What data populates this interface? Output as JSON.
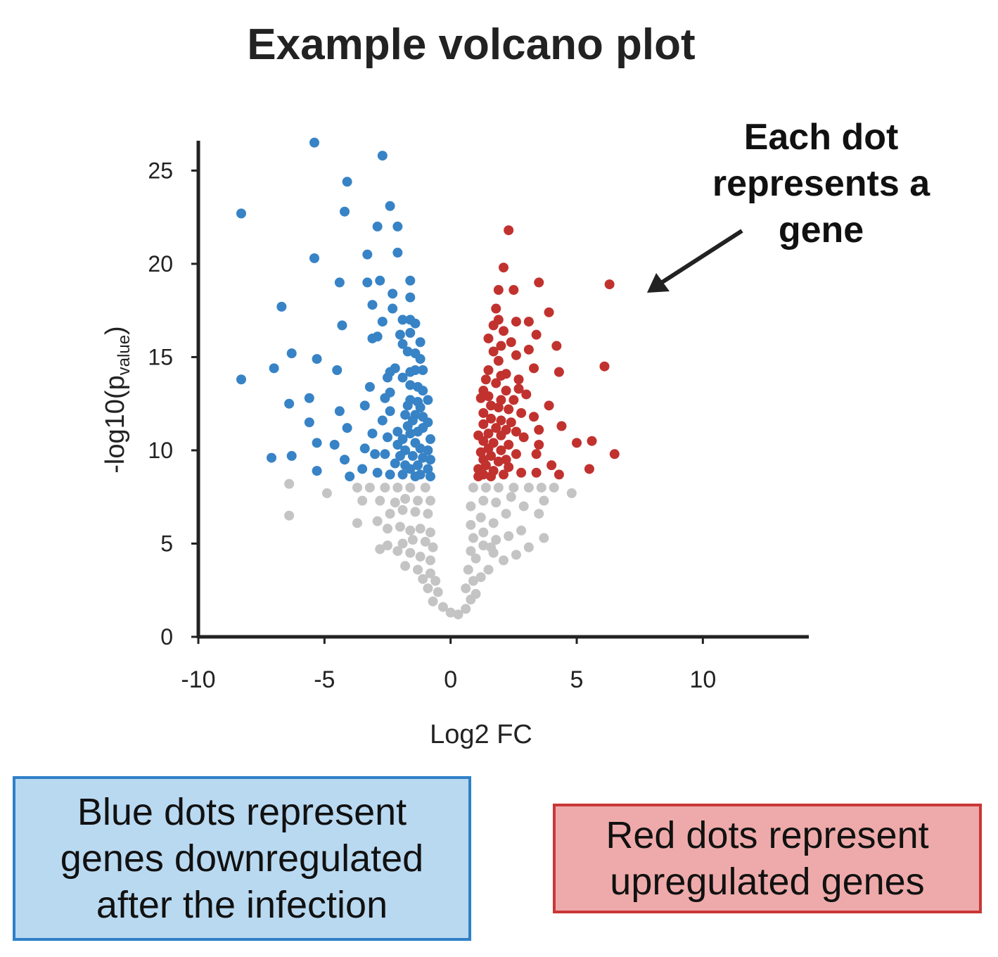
{
  "title": "Example volcano plot",
  "annotation": {
    "lines": [
      "Each dot",
      "represents a",
      "gene"
    ]
  },
  "notes": {
    "blue": [
      "Blue dots represent",
      "genes downregulated",
      "after the infection"
    ],
    "red": [
      "Red dots represent",
      "upregulated genes"
    ]
  },
  "colors": {
    "down": "#3783c6",
    "up": "#c1322f",
    "ns": "#c4c4c4",
    "axis": "#222222"
  },
  "chart_data": {
    "type": "scatter",
    "xlabel": "Log2 FC",
    "ylabel_main": "-log10(p",
    "ylabel_sub": "value",
    "ylabel_end": ")",
    "xlim": [
      -10,
      14.2
    ],
    "ylim": [
      0,
      26.6
    ],
    "xticks": [
      -10,
      -5,
      0,
      5,
      10
    ],
    "yticks": [
      0,
      5,
      10,
      15,
      20,
      25
    ],
    "series": [
      {
        "group": "down",
        "points": [
          [
            -5.4,
            26.5
          ],
          [
            -2.7,
            25.8
          ],
          [
            -4.1,
            24.4
          ],
          [
            -8.3,
            22.7
          ],
          [
            -4.2,
            22.8
          ],
          [
            -2.4,
            23.1
          ],
          [
            -2.9,
            22.0
          ],
          [
            -2.1,
            22.0
          ],
          [
            -3.3,
            20.5
          ],
          [
            -2.1,
            20.6
          ],
          [
            -5.4,
            20.3
          ],
          [
            -4.4,
            19.0
          ],
          [
            -3.3,
            19.0
          ],
          [
            -2.8,
            19.1
          ],
          [
            -1.6,
            19.1
          ],
          [
            -2.3,
            18.4
          ],
          [
            -1.6,
            18.2
          ],
          [
            -3.1,
            17.8
          ],
          [
            -2.3,
            17.6
          ],
          [
            -6.7,
            17.7
          ],
          [
            -1.9,
            17.0
          ],
          [
            -1.6,
            17.0
          ],
          [
            -1.4,
            16.8
          ],
          [
            -2.7,
            16.9
          ],
          [
            -4.3,
            16.7
          ],
          [
            -2.0,
            16.2
          ],
          [
            -1.6,
            16.3
          ],
          [
            -3.1,
            16.0
          ],
          [
            -2.9,
            16.1
          ],
          [
            -1.9,
            15.7
          ],
          [
            -1.2,
            15.8
          ],
          [
            -1.7,
            15.3
          ],
          [
            -1.4,
            15.2
          ],
          [
            -6.3,
            15.2
          ],
          [
            -5.3,
            14.9
          ],
          [
            -1.2,
            14.9
          ],
          [
            -2.2,
            14.4
          ],
          [
            -1.6,
            14.2
          ],
          [
            -7.0,
            14.4
          ],
          [
            -4.5,
            14.3
          ],
          [
            -2.4,
            14.2
          ],
          [
            -2.5,
            13.9
          ],
          [
            -1.4,
            14.3
          ],
          [
            -1.1,
            14.3
          ],
          [
            -1.9,
            13.9
          ],
          [
            -8.3,
            13.8
          ],
          [
            -3.2,
            13.4
          ],
          [
            -1.6,
            13.5
          ],
          [
            -1.3,
            13.4
          ],
          [
            -1.1,
            13.2
          ],
          [
            -2.4,
            13.1
          ],
          [
            -2.6,
            12.8
          ],
          [
            -1.6,
            12.7
          ],
          [
            -1.3,
            12.6
          ],
          [
            -0.9,
            12.7
          ],
          [
            -5.6,
            12.8
          ],
          [
            -6.4,
            12.5
          ],
          [
            -3.4,
            12.4
          ],
          [
            -1.7,
            12.4
          ],
          [
            -1.2,
            12.3
          ],
          [
            -2.4,
            12.1
          ],
          [
            -4.4,
            12.1
          ],
          [
            -1.8,
            11.9
          ],
          [
            -1.4,
            11.9
          ],
          [
            -1.1,
            11.8
          ],
          [
            -2.7,
            11.6
          ],
          [
            -1.5,
            11.6
          ],
          [
            -0.9,
            11.5
          ],
          [
            -5.6,
            11.5
          ],
          [
            -1.7,
            11.3
          ],
          [
            -1.1,
            11.2
          ],
          [
            -4.1,
            11.2
          ],
          [
            -2.1,
            11.0
          ],
          [
            -1.3,
            11.0
          ],
          [
            -3.1,
            10.9
          ],
          [
            -1.6,
            10.9
          ],
          [
            -2.5,
            10.7
          ],
          [
            -1.9,
            10.6
          ],
          [
            -0.8,
            10.6
          ],
          [
            -5.3,
            10.4
          ],
          [
            -4.6,
            10.3
          ],
          [
            -2.1,
            10.3
          ],
          [
            -1.4,
            10.4
          ],
          [
            -3.4,
            10.1
          ],
          [
            -1.8,
            10.0
          ],
          [
            -1.2,
            10.1
          ],
          [
            -0.9,
            10.0
          ],
          [
            -2.6,
            9.8
          ],
          [
            -3.0,
            9.8
          ],
          [
            -2.0,
            9.7
          ],
          [
            -1.5,
            9.7
          ],
          [
            -6.3,
            9.7
          ],
          [
            -7.1,
            9.6
          ],
          [
            -4.2,
            9.5
          ],
          [
            -1.1,
            9.6
          ],
          [
            -0.8,
            9.5
          ],
          [
            -2.2,
            9.3
          ],
          [
            -1.8,
            9.2
          ],
          [
            -1.3,
            9.2
          ],
          [
            -3.5,
            9.0
          ],
          [
            -1.6,
            9.0
          ],
          [
            -0.9,
            9.0
          ],
          [
            -5.3,
            8.9
          ],
          [
            -2.9,
            8.8
          ],
          [
            -2.4,
            8.7
          ],
          [
            -1.9,
            8.7
          ],
          [
            -1.2,
            8.7
          ],
          [
            -4.0,
            8.6
          ],
          [
            -1.4,
            8.6
          ],
          [
            -0.8,
            8.6
          ]
        ]
      },
      {
        "group": "up",
        "points": [
          [
            2.3,
            21.8
          ],
          [
            2.1,
            19.8
          ],
          [
            3.5,
            19.0
          ],
          [
            6.3,
            18.9
          ],
          [
            1.9,
            18.6
          ],
          [
            2.5,
            18.6
          ],
          [
            1.8,
            17.6
          ],
          [
            3.9,
            17.4
          ],
          [
            1.9,
            17.0
          ],
          [
            2.6,
            16.9
          ],
          [
            3.1,
            16.9
          ],
          [
            1.7,
            16.7
          ],
          [
            2.1,
            16.4
          ],
          [
            3.4,
            16.2
          ],
          [
            1.5,
            16.0
          ],
          [
            2.4,
            15.8
          ],
          [
            2.0,
            15.6
          ],
          [
            3.1,
            15.4
          ],
          [
            1.7,
            15.3
          ],
          [
            4.2,
            15.6
          ],
          [
            2.6,
            15.1
          ],
          [
            6.1,
            14.5
          ],
          [
            1.9,
            14.8
          ],
          [
            1.5,
            14.3
          ],
          [
            2.0,
            14.0
          ],
          [
            3.3,
            14.4
          ],
          [
            2.2,
            14.1
          ],
          [
            4.3,
            14.2
          ],
          [
            1.4,
            13.8
          ],
          [
            2.7,
            13.8
          ],
          [
            1.8,
            13.6
          ],
          [
            1.3,
            13.2
          ],
          [
            2.7,
            13.3
          ],
          [
            2.2,
            13.2
          ],
          [
            1.5,
            12.9
          ],
          [
            3.0,
            13.0
          ],
          [
            1.2,
            12.8
          ],
          [
            2.0,
            12.7
          ],
          [
            2.5,
            12.7
          ],
          [
            3.9,
            12.4
          ],
          [
            1.6,
            12.4
          ],
          [
            1.9,
            12.3
          ],
          [
            2.3,
            12.2
          ],
          [
            2.8,
            12.0
          ],
          [
            1.3,
            12.0
          ],
          [
            3.3,
            11.8
          ],
          [
            1.6,
            11.7
          ],
          [
            2.0,
            11.6
          ],
          [
            2.4,
            11.5
          ],
          [
            1.3,
            11.4
          ],
          [
            1.8,
            11.2
          ],
          [
            4.4,
            11.3
          ],
          [
            2.2,
            11.1
          ],
          [
            2.6,
            11.0
          ],
          [
            3.5,
            11.1
          ],
          [
            1.5,
            10.9
          ],
          [
            1.1,
            10.8
          ],
          [
            2.0,
            10.8
          ],
          [
            2.9,
            10.7
          ],
          [
            1.3,
            10.5
          ],
          [
            1.7,
            10.4
          ],
          [
            2.3,
            10.3
          ],
          [
            5.0,
            10.4
          ],
          [
            5.6,
            10.5
          ],
          [
            3.5,
            10.3
          ],
          [
            1.5,
            10.1
          ],
          [
            2.0,
            10.0
          ],
          [
            1.2,
            9.9
          ],
          [
            2.6,
            9.8
          ],
          [
            3.4,
            9.8
          ],
          [
            6.5,
            9.8
          ],
          [
            1.6,
            9.7
          ],
          [
            2.2,
            9.5
          ],
          [
            1.3,
            9.5
          ],
          [
            1.9,
            9.4
          ],
          [
            4.0,
            9.2
          ],
          [
            1.4,
            9.2
          ],
          [
            2.3,
            9.1
          ],
          [
            1.1,
            9.0
          ],
          [
            1.7,
            8.9
          ],
          [
            2.8,
            8.8
          ],
          [
            3.4,
            8.8
          ],
          [
            5.5,
            9.0
          ],
          [
            1.3,
            8.7
          ],
          [
            2.1,
            8.7
          ],
          [
            4.3,
            8.7
          ],
          [
            1.6,
            8.6
          ],
          [
            1.1,
            8.6
          ]
        ]
      },
      {
        "group": "ns",
        "points": [
          [
            -6.4,
            8.2
          ],
          [
            -4.9,
            7.7
          ],
          [
            -6.4,
            6.5
          ],
          [
            -3.7,
            8.0
          ],
          [
            -3.2,
            8.0
          ],
          [
            -2.6,
            8.0
          ],
          [
            -2.1,
            8.0
          ],
          [
            -1.6,
            8.0
          ],
          [
            -1.0,
            8.0
          ],
          [
            -3.5,
            7.3
          ],
          [
            -2.8,
            7.3
          ],
          [
            -2.2,
            7.2
          ],
          [
            -1.8,
            7.4
          ],
          [
            -1.3,
            7.3
          ],
          [
            -0.8,
            7.3
          ],
          [
            -3.7,
            6.1
          ],
          [
            -2.9,
            6.2
          ],
          [
            -2.4,
            6.6
          ],
          [
            -1.9,
            6.8
          ],
          [
            -1.4,
            6.7
          ],
          [
            -0.9,
            6.6
          ],
          [
            -2.5,
            5.8
          ],
          [
            -2.0,
            5.9
          ],
          [
            -1.6,
            5.7
          ],
          [
            -1.2,
            5.8
          ],
          [
            -0.8,
            5.6
          ],
          [
            -2.5,
            4.9
          ],
          [
            -1.9,
            5.0
          ],
          [
            -1.5,
            5.2
          ],
          [
            -1.0,
            5.1
          ],
          [
            -0.7,
            4.8
          ],
          [
            -2.8,
            4.7
          ],
          [
            -2.1,
            4.6
          ],
          [
            -1.6,
            4.5
          ],
          [
            -1.2,
            4.3
          ],
          [
            -0.8,
            4.1
          ],
          [
            -1.8,
            3.8
          ],
          [
            -1.3,
            3.6
          ],
          [
            -0.8,
            3.4
          ],
          [
            -1.1,
            3.1
          ],
          [
            -0.6,
            3.0
          ],
          [
            -0.9,
            2.6
          ],
          [
            -0.5,
            2.4
          ],
          [
            -0.7,
            1.9
          ],
          [
            -0.3,
            1.6
          ],
          [
            0.0,
            1.3
          ],
          [
            0.3,
            1.2
          ],
          [
            0.6,
            1.5
          ],
          [
            0.8,
            2.0
          ],
          [
            0.6,
            2.6
          ],
          [
            1.0,
            2.3
          ],
          [
            0.9,
            3.0
          ],
          [
            0.7,
            3.6
          ],
          [
            1.2,
            3.2
          ],
          [
            1.5,
            3.6
          ],
          [
            1.0,
            4.2
          ],
          [
            0.8,
            4.6
          ],
          [
            1.3,
            4.9
          ],
          [
            1.7,
            4.5
          ],
          [
            2.1,
            4.1
          ],
          [
            0.9,
            5.3
          ],
          [
            1.3,
            5.6
          ],
          [
            1.8,
            5.2
          ],
          [
            2.3,
            5.4
          ],
          [
            0.8,
            6.0
          ],
          [
            1.2,
            6.4
          ],
          [
            1.7,
            6.1
          ],
          [
            2.2,
            6.6
          ],
          [
            2.8,
            5.7
          ],
          [
            3.1,
            4.8
          ],
          [
            0.8,
            7.0
          ],
          [
            1.3,
            7.3
          ],
          [
            1.8,
            7.2
          ],
          [
            2.4,
            7.5
          ],
          [
            2.9,
            7.0
          ],
          [
            3.5,
            6.6
          ],
          [
            3.7,
            7.3
          ],
          [
            0.9,
            8.0
          ],
          [
            1.4,
            8.0
          ],
          [
            1.9,
            8.0
          ],
          [
            2.5,
            8.0
          ],
          [
            3.1,
            8.0
          ],
          [
            3.6,
            8.0
          ],
          [
            4.1,
            8.0
          ],
          [
            4.8,
            7.7
          ],
          [
            3.7,
            5.3
          ],
          [
            2.6,
            4.4
          ],
          [
            1.6,
            4.8
          ]
        ]
      }
    ]
  }
}
